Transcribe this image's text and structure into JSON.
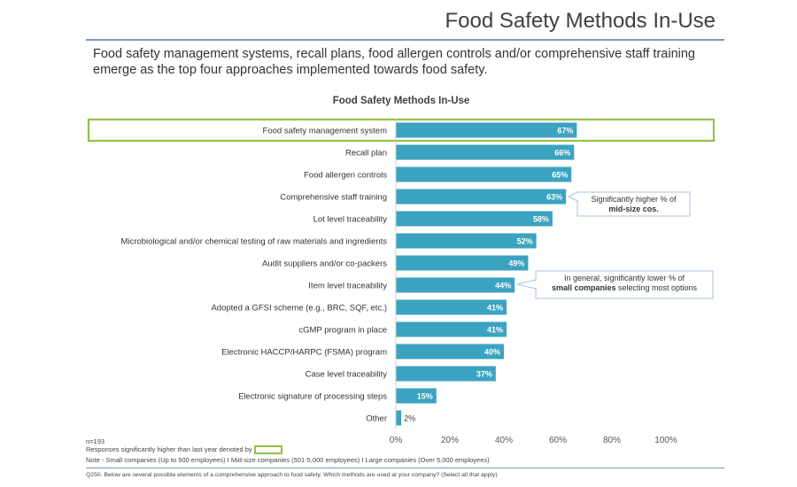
{
  "page": {
    "title": "Food Safety Methods In-Use",
    "subtitle": "Food safety management systems, recall plans, food allergen controls and/or comprehensive staff training emerge as the top four approaches implemented towards food safety."
  },
  "chart_data": {
    "type": "bar",
    "orientation": "horizontal",
    "title": "Food Safety Methods In-Use",
    "categories": [
      "Food safety management system",
      "Recall plan",
      "Food allergen controls",
      "Comprehensive staff training",
      "Lot level traceability",
      "Microbiological and/or chemical testing of raw materials and ingredients",
      "Audit suppliers and/or co-packers",
      "Item level traceability",
      "Adopted a GFSI scheme (e.g., BRC, SQF, etc.)",
      "cGMP program in place",
      "Electronic HACCP/HARPC (FSMA) program",
      "Case level traceability",
      "Electronic signature of processing steps",
      "Other"
    ],
    "values": [
      67,
      66,
      65,
      63,
      58,
      52,
      49,
      44,
      41,
      41,
      40,
      37,
      15,
      2
    ],
    "value_labels": [
      "67%",
      "66%",
      "65%",
      "63%",
      "58%",
      "52%",
      "49%",
      "44%",
      "41%",
      "41%",
      "40%",
      "37%",
      "15%",
      "2%"
    ],
    "highlighted_categories": [
      "Food safety management system"
    ],
    "xlim": [
      0,
      100
    ],
    "x_ticks": [
      "0%",
      "20%",
      "40%",
      "60%",
      "80%",
      "100%"
    ],
    "grid": false,
    "colors": {
      "bar": "#3ba3c0",
      "highlight": "#92c04a",
      "callout_border": "#a9c3dc"
    },
    "annotations": [
      {
        "text_lines": [
          [
            {
              "t": "Significantly higher % of",
              "b": false
            }
          ],
          [
            {
              "t": "mid-size cos.",
              "b": true
            }
          ]
        ],
        "category": "Comprehensive staff training"
      },
      {
        "text_lines": [
          [
            {
              "t": "In general, significantly lower % of",
              "b": false
            }
          ],
          [
            {
              "t": "small companies",
              "b": true
            },
            {
              "t": " selecting most options",
              "b": false
            }
          ]
        ],
        "category": "Item level traceability"
      }
    ]
  },
  "footer": {
    "n": "n=193",
    "legend_text": "Responses significantly higher than last year denoted by",
    "note": "Note - Small companies (Up to 500 employees) I Mid-size companies (501-5,000 employees) I Large companies (Over 5,000 employees)",
    "question": "Q250. Below are several possible elements of a comprehensive approach to food safety. Which methods are used at your company? (Select all that apply)"
  }
}
